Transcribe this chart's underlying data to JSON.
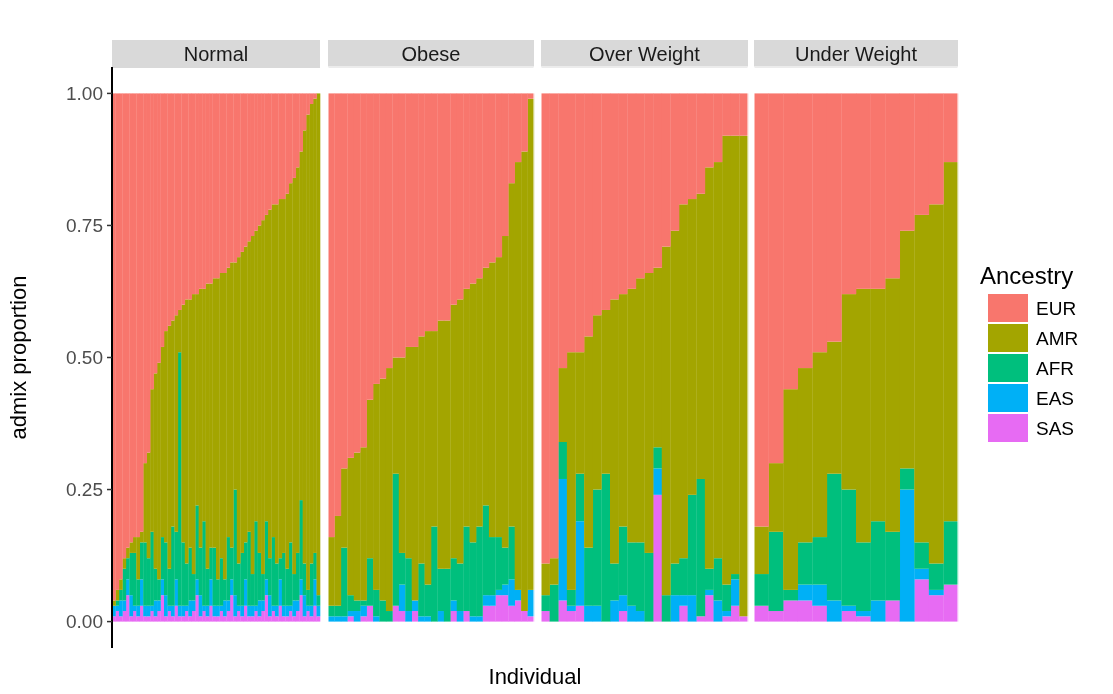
{
  "chart_data": [
    {
      "type": "bar",
      "title": "Normal",
      "stacked": true,
      "ylabel": "admix proportion",
      "tick_labels": "y",
      "ylim": [
        -0.05,
        1.05
      ],
      "yticks": [
        {
          "value": 0,
          "label": "0.00"
        },
        {
          "value": 0.25,
          "label": "0.25"
        },
        {
          "value": 0.5,
          "label": "0.50"
        },
        {
          "value": 0.75,
          "label": "0.75"
        },
        {
          "value": 1,
          "label": "1.00"
        }
      ],
      "categories": [
        null,
        null,
        null,
        null,
        null,
        null,
        null,
        null,
        null,
        null,
        null,
        null,
        null,
        null,
        null,
        null,
        null,
        null,
        null,
        null,
        null,
        null,
        null,
        null,
        null,
        null,
        null,
        null,
        null,
        null,
        null,
        null,
        null,
        null,
        null,
        null,
        null,
        null,
        null,
        null,
        null,
        null,
        null,
        null,
        null,
        null,
        null,
        null,
        null,
        null,
        null,
        null,
        null,
        null,
        null,
        null,
        null,
        null,
        null,
        null
      ],
      "series": [
        {
          "color": "#e76bf3",
          "values": [
            0.01,
            0.02,
            0.01,
            0.02,
            0.05,
            0.01,
            0.02,
            0.01,
            0.03,
            0.01,
            0.01,
            0.02,
            0.01,
            0.02,
            0.05,
            0.01,
            0.02,
            0.01,
            0.03,
            0.01,
            0.01,
            0.02,
            0.01,
            0.02,
            0.05,
            0.01,
            0.02,
            0.01,
            0.03,
            0.01,
            0.01,
            0.02,
            0.01,
            0.02,
            0.05,
            0.01,
            0.02,
            0.01,
            0.03,
            0.01,
            0.01,
            0.02,
            0.01,
            0.02,
            0.05,
            0.01,
            0.02,
            0.01,
            0.03,
            0.01,
            0.01,
            0.02,
            0.01,
            0.02,
            0.05,
            0.01,
            0.02,
            0.01,
            0.03,
            0.01
          ]
        },
        {
          "color": "#00b0f6",
          "values": [
            0.02,
            0.01,
            0.03,
            0.02,
            0.03,
            0.04,
            0.01,
            0.02,
            0.05,
            0.02,
            0.02,
            0.01,
            0.03,
            0.02,
            0.03,
            0.04,
            0.01,
            0.02,
            0.05,
            0.02,
            0.02,
            0.01,
            0.03,
            0.02,
            0.03,
            0.04,
            0.01,
            0.02,
            0.05,
            0.02,
            0.02,
            0.01,
            0.03,
            0.02,
            0.03,
            0.04,
            0.01,
            0.02,
            0.05,
            0.02,
            0.02,
            0.01,
            0.03,
            0.02,
            0.03,
            0.04,
            0.01,
            0.02,
            0.05,
            0.02,
            0.02,
            0.01,
            0.03,
            0.02,
            0.03,
            0.04,
            0.01,
            0.02,
            0.05,
            0.02
          ]
        },
        {
          "color": "#00bf7d",
          "values": [
            0.0,
            0.01,
            0.02,
            0.06,
            0.04,
            0.08,
            0.1,
            0.05,
            0.07,
            0.12,
            0.09,
            0.14,
            0.06,
            0.04,
            0.08,
            0.1,
            0.07,
            0.15,
            0.09,
            0.48,
            0.12,
            0.08,
            0.1,
            0.05,
            0.14,
            0.09,
            0.16,
            0.07,
            0.06,
            0.11,
            0.05,
            0.09,
            0.04,
            0.12,
            0.06,
            0.2,
            0.08,
            0.1,
            0.07,
            0.14,
            0.06,
            0.16,
            0.09,
            0.05,
            0.11,
            0.07,
            0.13,
            0.08,
            0.04,
            0.1,
            0.07,
            0.12,
            0.05,
            0.09,
            0.15,
            0.06,
            0.03,
            0.08,
            0.05,
            0.02
          ]
        },
        {
          "color": "#a3a500",
          "values": [
            0.01,
            0.02,
            0.02,
            0.02,
            0.02,
            0.02,
            0.03,
            0.08,
            0.02,
            0.15,
            0.2,
            0.27,
            0.37,
            0.41,
            0.36,
            0.4,
            0.46,
            0.39,
            0.41,
            0.08,
            0.45,
            0.5,
            0.47,
            0.53,
            0.4,
            0.49,
            0.44,
            0.54,
            0.5,
            0.51,
            0.57,
            0.54,
            0.58,
            0.51,
            0.54,
            0.43,
            0.58,
            0.57,
            0.56,
            0.55,
            0.64,
            0.55,
            0.62,
            0.67,
            0.58,
            0.66,
            0.63,
            0.68,
            0.68,
            0.67,
            0.71,
            0.68,
            0.75,
            0.73,
            0.66,
            0.82,
            0.9,
            0.87,
            0.86,
            0.95
          ]
        },
        {
          "color": "#f8766d",
          "values": [
            0.96,
            0.94,
            0.92,
            0.88,
            0.86,
            0.85,
            0.84,
            0.84,
            0.83,
            0.7,
            0.68,
            0.56,
            0.53,
            0.51,
            0.48,
            0.45,
            0.44,
            0.43,
            0.42,
            0.41,
            0.4,
            0.39,
            0.39,
            0.38,
            0.38,
            0.37,
            0.37,
            0.36,
            0.36,
            0.35,
            0.35,
            0.34,
            0.34,
            0.33,
            0.32,
            0.32,
            0.31,
            0.3,
            0.29,
            0.28,
            0.27,
            0.26,
            0.25,
            0.24,
            0.23,
            0.22,
            0.21,
            0.21,
            0.2,
            0.2,
            0.19,
            0.17,
            0.16,
            0.14,
            0.11,
            0.07,
            0.04,
            0.02,
            0.01,
            0.0
          ]
        }
      ]
    },
    {
      "type": "bar",
      "title": "Obese",
      "stacked": true,
      "tick_labels": false,
      "ylim": [
        -0.05,
        1.05
      ],
      "yticks": [
        {
          "value": 0,
          "label": null
        },
        {
          "value": 0.25,
          "label": null
        },
        {
          "value": 0.5,
          "label": null
        },
        {
          "value": 0.75,
          "label": null
        },
        {
          "value": 1,
          "label": null
        }
      ],
      "categories": [
        null,
        null,
        null,
        null,
        null,
        null,
        null,
        null,
        null,
        null,
        null,
        null,
        null,
        null,
        null,
        null,
        null,
        null,
        null,
        null,
        null,
        null,
        null,
        null,
        null,
        null,
        null,
        null,
        null,
        null,
        null,
        null
      ],
      "series": [
        {
          "color": "#e76bf3",
          "values": [
            0,
            0,
            0,
            0.01,
            0,
            0.01,
            0.03,
            0,
            0,
            0,
            0.03,
            0.02,
            0,
            0.02,
            0,
            0,
            0,
            0,
            0,
            0.02,
            0,
            0.02,
            0,
            0,
            0.03,
            0.03,
            0.05,
            0.05,
            0.03,
            0.04,
            0.02,
            0.01
          ]
        },
        {
          "color": "#00b0f6",
          "values": [
            0.01,
            0.01,
            0.01,
            0.01,
            0.02,
            0.02,
            0,
            0.01,
            0,
            0,
            0,
            0.05,
            0.02,
            0.02,
            0.01,
            0.01,
            0,
            0.02,
            0,
            0.02,
            0.02,
            0,
            0.01,
            0.01,
            0.02,
            0.02,
            0.01,
            0.02,
            0.05,
            0.02,
            0,
            0.05
          ]
        },
        {
          "color": "#00bf7d",
          "values": [
            0.02,
            0.02,
            0.13,
            0.03,
            0.02,
            0.01,
            0.09,
            0.05,
            0.04,
            0.02,
            0.25,
            0.06,
            0.1,
            0.0,
            0.1,
            0.06,
            0.18,
            0.08,
            0.1,
            0.08,
            0.09,
            0.16,
            0.14,
            0.17,
            0.17,
            0.11,
            0.1,
            0.07,
            0.1,
            0.0,
            0.0,
            0.0
          ]
        },
        {
          "color": "#a3a500",
          "values": [
            0.13,
            0.17,
            0.15,
            0.26,
            0.28,
            0.29,
            0.3,
            0.39,
            0.42,
            0.46,
            0.22,
            0.37,
            0.4,
            0.48,
            0.43,
            0.48,
            0.37,
            0.47,
            0.47,
            0.48,
            0.5,
            0.45,
            0.49,
            0.47,
            0.45,
            0.52,
            0.53,
            0.59,
            0.65,
            0.81,
            0.87,
            0.93
          ]
        },
        {
          "color": "#f8766d",
          "values": [
            0.84,
            0.8,
            0.71,
            0.69,
            0.68,
            0.67,
            0.58,
            0.55,
            0.54,
            0.52,
            0.5,
            0.5,
            0.48,
            0.48,
            0.46,
            0.45,
            0.45,
            0.43,
            0.43,
            0.4,
            0.39,
            0.37,
            0.36,
            0.35,
            0.33,
            0.32,
            0.31,
            0.27,
            0.17,
            0.13,
            0.11,
            0.01
          ]
        }
      ]
    },
    {
      "type": "bar",
      "title": "Over Weight",
      "stacked": true,
      "tick_labels": false,
      "ylim": [
        -0.05,
        1.05
      ],
      "yticks": [
        {
          "value": 0,
          "label": null
        },
        {
          "value": 0.25,
          "label": null
        },
        {
          "value": 0.5,
          "label": null
        },
        {
          "value": 0.75,
          "label": null
        },
        {
          "value": 1,
          "label": null
        }
      ],
      "xlabel": "Individual",
      "categories": [
        null,
        null,
        null,
        null,
        null,
        null,
        null,
        null,
        null,
        null,
        null,
        null,
        null,
        null,
        null,
        null,
        null,
        null,
        null,
        null,
        null,
        null,
        null,
        null
      ],
      "series": [
        {
          "color": "#e76bf3",
          "values": [
            0.02,
            0,
            0.04,
            0.02,
            0.03,
            0,
            0,
            0,
            0,
            0.02,
            0,
            0,
            0,
            0.24,
            0,
            0,
            0.03,
            0,
            0.01,
            0.05,
            0,
            0.01,
            0.03,
            0.01
          ]
        },
        {
          "color": "#00b0f6",
          "values": [
            0,
            0,
            0.23,
            0.01,
            0.16,
            0.03,
            0.03,
            0,
            0.04,
            0.03,
            0.03,
            0.02,
            0,
            0.05,
            0,
            0.05,
            0.02,
            0.05,
            0,
            0.01,
            0.04,
            0.01,
            0.05,
            0
          ]
        },
        {
          "color": "#00bf7d",
          "values": [
            0.03,
            0.07,
            0.07,
            0.03,
            0.09,
            0.11,
            0.22,
            0.28,
            0.07,
            0.13,
            0.12,
            0.13,
            0.13,
            0.04,
            0.05,
            0.06,
            0.07,
            0.19,
            0.26,
            0.04,
            0.08,
            0.05,
            0.01,
            0.0
          ]
        },
        {
          "color": "#a3a500",
          "values": [
            0.06,
            0.05,
            0.14,
            0.45,
            0.23,
            0.4,
            0.33,
            0.31,
            0.5,
            0.44,
            0.48,
            0.5,
            0.53,
            0.34,
            0.66,
            0.63,
            0.67,
            0.56,
            0.54,
            0.76,
            0.75,
            0.85,
            0.83,
            0.91
          ]
        },
        {
          "color": "#f8766d",
          "values": [
            0.89,
            0.88,
            0.52,
            0.49,
            0.49,
            0.46,
            0.42,
            0.41,
            0.39,
            0.38,
            0.37,
            0.35,
            0.34,
            0.33,
            0.29,
            0.26,
            0.21,
            0.2,
            0.19,
            0.14,
            0.13,
            0.08,
            0.08,
            0.08
          ]
        }
      ]
    },
    {
      "type": "bar",
      "title": "Under Weight",
      "stacked": true,
      "tick_labels": false,
      "legend": "right",
      "legend_title": "Ancestry",
      "ylim": [
        -0.05,
        1.05
      ],
      "yticks": [
        {
          "value": 0,
          "label": null
        },
        {
          "value": 0.25,
          "label": null
        },
        {
          "value": 0.5,
          "label": null
        },
        {
          "value": 0.75,
          "label": null
        },
        {
          "value": 1,
          "label": null
        }
      ],
      "categories": [
        null,
        null,
        null,
        null,
        null,
        null,
        null,
        null,
        null,
        null,
        null,
        null,
        null,
        null
      ],
      "series": [
        {
          "name": "SAS",
          "color": "#e76bf3",
          "values": [
            0.03,
            0.02,
            0.04,
            0.04,
            0.03,
            0,
            0.02,
            0.01,
            0,
            0.04,
            0,
            0.08,
            0.05,
            0.07
          ]
        },
        {
          "name": "EAS",
          "color": "#00b0f6",
          "values": [
            0,
            0,
            0,
            0.03,
            0.04,
            0.04,
            0.01,
            0.01,
            0.04,
            0,
            0.25,
            0.02,
            0.01,
            0
          ]
        },
        {
          "name": "AFR",
          "color": "#00bf7d",
          "values": [
            0.06,
            0.15,
            0.02,
            0.08,
            0.09,
            0.24,
            0.22,
            0.13,
            0.15,
            0.13,
            0.04,
            0.05,
            0.05,
            0.12
          ]
        },
        {
          "name": "AMR",
          "color": "#a3a500",
          "values": [
            0.09,
            0.13,
            0.38,
            0.33,
            0.35,
            0.25,
            0.37,
            0.48,
            0.44,
            0.48,
            0.45,
            0.62,
            0.68,
            0.68
          ]
        },
        {
          "name": "EUR",
          "color": "#f8766d",
          "values": [
            0.82,
            0.7,
            0.56,
            0.52,
            0.49,
            0.47,
            0.38,
            0.37,
            0.37,
            0.35,
            0.26,
            0.23,
            0.21,
            0.13
          ]
        }
      ]
    }
  ]
}
